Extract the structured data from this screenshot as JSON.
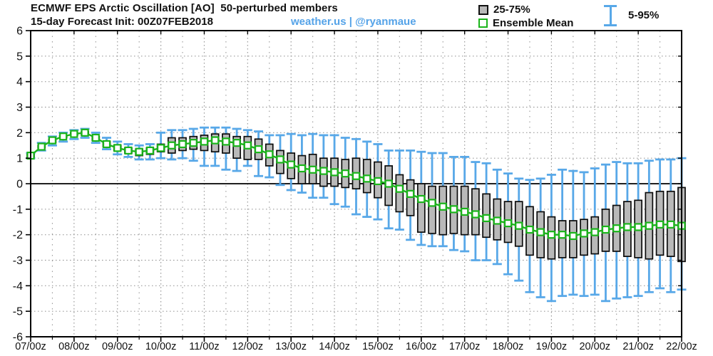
{
  "header": {
    "title_line1": "ECMWF EPS Arctic Oscillation [AO]  50-perturbed members",
    "title_line2": "15-day Forecast Init: 00Z07FEB2018",
    "watermark": "weather.us | @ryanmaue",
    "legend": {
      "box_label": "25-75%",
      "mean_label": "Ensemble Mean",
      "whisker_label": "5-95%"
    }
  },
  "colors": {
    "mean": "#1bb41b",
    "whisker": "#58a8e8",
    "box_fill": "#b9b9b9",
    "box_stroke": "#0b0b0b",
    "watermark": "#55a3e8",
    "grid": "#9a9a9a",
    "axis": "#000000"
  },
  "chart_data": {
    "type": "box-whisker-timeseries",
    "title": "ECMWF EPS Arctic Oscillation [AO] 50-perturbed members",
    "subtitle": "15-day Forecast Init: 00Z07FEB2018",
    "step_hours": 6,
    "x_tick_labels": [
      "07/00z",
      "08/00z",
      "09/00z",
      "10/00z",
      "11/00z",
      "12/00z",
      "13/00z",
      "14/00z",
      "15/00z",
      "16/00z",
      "17/00z",
      "18/00z",
      "19/00z",
      "20/00z",
      "21/00z",
      "22/00z"
    ],
    "y_ticks": [
      6,
      5,
      4,
      3,
      2,
      1,
      0,
      -1,
      -2,
      -3,
      -4,
      -5,
      -6
    ],
    "ylim": [
      -6,
      6
    ],
    "grid": "dotted",
    "legend_position": "top-right",
    "mean": [
      1.1,
      1.45,
      1.7,
      1.85,
      1.95,
      2.0,
      1.8,
      1.55,
      1.4,
      1.3,
      1.25,
      1.3,
      1.4,
      1.5,
      1.55,
      1.6,
      1.65,
      1.7,
      1.65,
      1.6,
      1.5,
      1.35,
      1.15,
      0.95,
      0.75,
      0.6,
      0.55,
      0.5,
      0.45,
      0.4,
      0.3,
      0.2,
      0.1,
      0.0,
      -0.2,
      -0.4,
      -0.6,
      -0.75,
      -0.9,
      -1.0,
      -1.1,
      -1.2,
      -1.35,
      -1.45,
      -1.55,
      -1.65,
      -1.8,
      -1.9,
      -2.0,
      -2.0,
      -2.05,
      -1.95,
      -1.9,
      -1.8,
      -1.75,
      -1.7,
      -1.7,
      -1.65,
      -1.6,
      -1.6,
      -1.65
    ],
    "p25": [
      1.05,
      1.4,
      1.6,
      1.8,
      1.9,
      1.9,
      1.7,
      1.45,
      1.3,
      1.2,
      1.1,
      1.15,
      1.25,
      1.2,
      1.3,
      1.35,
      1.3,
      1.25,
      1.2,
      1.0,
      0.95,
      0.95,
      0.7,
      0.4,
      0.2,
      0.0,
      0.0,
      -0.1,
      -0.1,
      -0.15,
      -0.2,
      -0.35,
      -0.55,
      -0.85,
      -1.1,
      -1.25,
      -1.9,
      -1.95,
      -2.0,
      -1.95,
      -2.0,
      -2.0,
      -2.1,
      -2.2,
      -2.3,
      -2.45,
      -2.8,
      -2.9,
      -2.95,
      -2.9,
      -2.9,
      -2.8,
      -2.75,
      -2.65,
      -2.65,
      -2.85,
      -2.9,
      -2.95,
      -2.8,
      -2.85,
      -3.05
    ],
    "p75": [
      1.15,
      1.5,
      1.75,
      1.9,
      2.0,
      2.05,
      1.85,
      1.65,
      1.5,
      1.4,
      1.35,
      1.4,
      1.55,
      1.8,
      1.8,
      1.85,
      1.9,
      1.95,
      1.95,
      1.85,
      1.85,
      1.75,
      1.55,
      1.3,
      1.2,
      1.1,
      1.15,
      1.0,
      1.0,
      0.95,
      1.0,
      0.95,
      0.85,
      0.7,
      0.35,
      0.15,
      0.0,
      -0.1,
      -0.1,
      -0.1,
      -0.1,
      -0.2,
      -0.4,
      -0.6,
      -0.7,
      -0.7,
      -0.9,
      -1.1,
      -1.3,
      -1.45,
      -1.45,
      -1.4,
      -1.3,
      -1.0,
      -0.85,
      -0.7,
      -0.65,
      -0.35,
      -0.3,
      -0.3,
      -0.15
    ],
    "p5": [
      1.0,
      1.3,
      1.5,
      1.65,
      1.75,
      1.8,
      1.6,
      1.35,
      1.15,
      1.05,
      0.95,
      0.95,
      1.0,
      0.95,
      1.0,
      0.9,
      0.7,
      0.7,
      0.55,
      0.5,
      0.7,
      0.3,
      0.25,
      -0.05,
      -0.25,
      -0.35,
      -0.55,
      -0.55,
      -0.8,
      -0.9,
      -1.2,
      -1.3,
      -1.4,
      -1.75,
      -1.8,
      -2.2,
      -2.4,
      -2.45,
      -2.45,
      -2.6,
      -2.65,
      -3.0,
      -3.0,
      -3.15,
      -3.55,
      -3.8,
      -4.25,
      -4.45,
      -4.6,
      -4.4,
      -4.35,
      -4.4,
      -4.35,
      -4.6,
      -4.5,
      -4.45,
      -4.4,
      -4.25,
      -4.1,
      -4.25,
      -4.15
    ],
    "p95": [
      1.2,
      1.6,
      1.85,
      2.0,
      2.1,
      2.15,
      2.0,
      1.8,
      1.65,
      1.55,
      1.5,
      1.55,
      2.0,
      2.1,
      2.1,
      2.15,
      2.2,
      2.2,
      2.2,
      2.15,
      2.1,
      2.05,
      1.9,
      1.9,
      1.95,
      1.9,
      1.95,
      1.9,
      1.9,
      1.8,
      1.75,
      1.65,
      1.55,
      1.3,
      1.3,
      1.3,
      1.25,
      1.2,
      1.2,
      1.05,
      1.05,
      0.85,
      0.8,
      0.55,
      0.4,
      0.2,
      0.15,
      0.2,
      0.35,
      0.55,
      0.5,
      0.45,
      0.6,
      0.75,
      0.85,
      0.8,
      0.8,
      0.9,
      0.95,
      0.95,
      1.0
    ]
  }
}
